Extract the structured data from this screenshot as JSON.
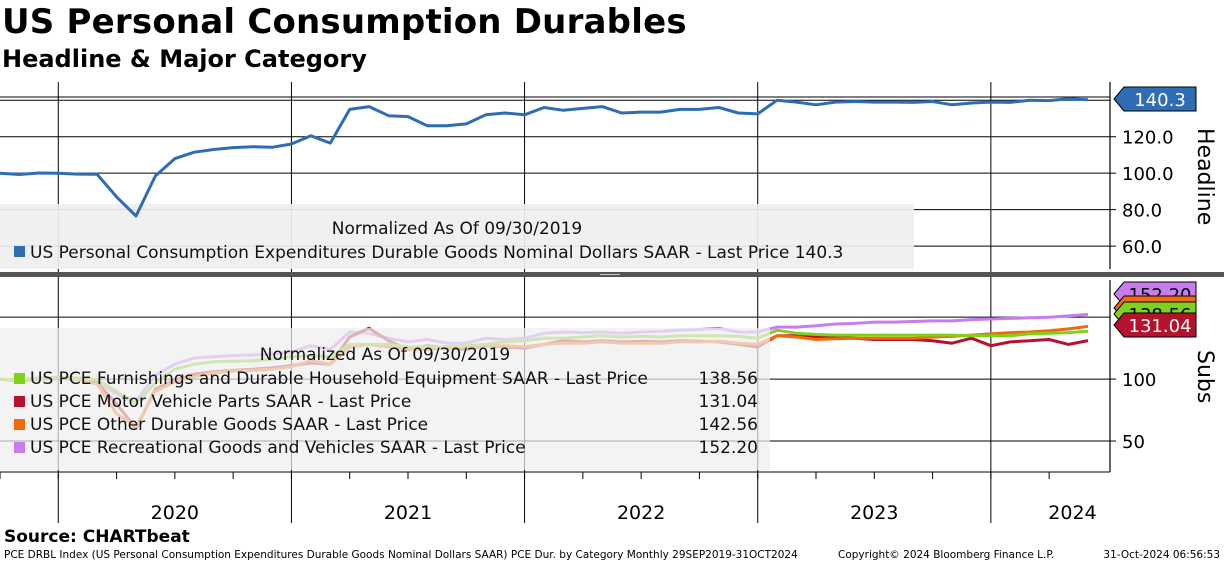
{
  "title": "US Personal Consumption Durables",
  "subtitle": "Headline & Major Category",
  "source": "Source: CHARTbeat",
  "footer": {
    "left": "PCE DRBL Index (US Personal Consumption Expenditures Durable Goods Nominal Dollars SAAR) PCE Dur. by Category  Monthly 29SEP2019-31OCT2024",
    "middle": "Copyright© 2024 Bloomberg Finance L.P.",
    "right": "31-Oct-2024 06:56:53"
  },
  "colors": {
    "headline": "#2E6DB4",
    "furnishings": "#7FD11B",
    "motor": "#B5122E",
    "other": "#F26A0D",
    "recreational": "#C77DF0",
    "furnishings_light": "#B5E68A",
    "motor_light": "#D8919A",
    "other_light": "#F5A980",
    "recreational_light": "#E3C4F7"
  },
  "chart_data": [
    {
      "type": "line",
      "panel": "top",
      "ylabel": "Headline",
      "ylim": [
        48,
        150
      ],
      "yticks": [
        "60.0",
        "80.0",
        "100.0",
        "120.0"
      ],
      "legend_header": "Normalized As Of 09/30/2019",
      "last_value_label": "140.3",
      "series": [
        {
          "name": "US Personal Consumption Expenditures Durable Goods Nominal Dollars SAAR - Last Price 140.3",
          "color_key": "headline",
          "values": [
            100.0,
            99.3,
            100.1,
            100.0,
            99.5,
            99.4,
            87.0,
            76.5,
            98.5,
            108.0,
            111.5,
            113.0,
            114.0,
            114.5,
            114.2,
            116.0,
            120.5,
            116.5,
            135.0,
            136.5,
            131.5,
            131.0,
            126.0,
            126.0,
            127.0,
            132.0,
            133.0,
            132.0,
            136.0,
            134.5,
            135.5,
            136.5,
            133.0,
            133.5,
            133.5,
            135.0,
            135.0,
            136.0,
            133.0,
            132.5,
            140.0,
            139.0,
            137.5,
            139.0,
            139.3,
            139.0,
            139.0,
            138.8,
            139.3,
            137.5,
            138.5,
            139.0,
            138.8,
            140.0,
            139.8,
            140.8,
            140.3
          ]
        }
      ]
    },
    {
      "type": "line",
      "panel": "bottom",
      "ylabel": "Subs",
      "ylim": [
        25,
        180
      ],
      "yticks": [
        "50",
        "100"
      ],
      "legend_header": "Normalized As Of 09/30/2019",
      "last_value_labels": [
        "152.20",
        "142.56",
        "138.56",
        "131.04"
      ],
      "series": [
        {
          "name": "US PCE Furnishings and Durable Household Equipment SAAR - Last Price 138.56",
          "legend_label": "US PCE Furnishings and Durable Household Equipment SAAR - Last Price",
          "last_price": "138.56",
          "color_key": "furnishings",
          "values": [
            100.0,
            99.0,
            100.5,
            101.0,
            101.0,
            99.5,
            90.0,
            80.0,
            97.0,
            108.0,
            112.0,
            114.0,
            114.5,
            114.8,
            116.0,
            118.0,
            119.0,
            118.0,
            128.0,
            128.0,
            128.0,
            126.0,
            126.0,
            126.0,
            127.0,
            128.0,
            130.0,
            131.0,
            133.0,
            133.0,
            134.0,
            135.0,
            134.0,
            134.5,
            134.0,
            135.0,
            135.0,
            135.0,
            134.5,
            133.0,
            139.5,
            137.0,
            136.0,
            135.5,
            135.5,
            135.5,
            135.5,
            135.5,
            135.5,
            135.5,
            135.0,
            135.0,
            135.0,
            136.5,
            137.0,
            137.5,
            138.56
          ]
        },
        {
          "name": "US PCE Motor Vehicle Parts SAAR - Last Price 131.04",
          "legend_label": "US PCE Motor Vehicle Parts SAAR - Last Price",
          "last_price": "131.04",
          "color_key": "motor",
          "values": [
            100.0,
            98.5,
            100.0,
            100.5,
            100.0,
            97.0,
            80.0,
            60.0,
            92.0,
            99.0,
            104.0,
            106.0,
            107.0,
            108.0,
            109.0,
            111.0,
            113.0,
            112.0,
            134.0,
            141.0,
            131.0,
            124.0,
            127.0,
            125.0,
            124.0,
            127.0,
            126.0,
            125.0,
            128.0,
            131.0,
            130.0,
            131.0,
            130.0,
            130.5,
            130.0,
            131.0,
            130.5,
            130.0,
            128.0,
            126.0,
            135.0,
            135.0,
            134.0,
            134.0,
            133.0,
            132.0,
            132.0,
            132.0,
            131.0,
            129.0,
            133.0,
            127.0,
            130.0,
            131.0,
            132.0,
            128.0,
            131.04
          ]
        },
        {
          "name": "US PCE Other Durable Goods SAAR - Last Price 142.56",
          "legend_label": "US PCE Other Durable Goods SAAR - Last Price",
          "last_price": "142.56",
          "color_key": "other",
          "values": [
            100.0,
            99.0,
            100.0,
            101.0,
            100.0,
            96.0,
            72.0,
            62.0,
            90.0,
            98.0,
            102.0,
            105.0,
            106.5,
            107.0,
            108.0,
            110.0,
            115.0,
            112.0,
            126.0,
            128.0,
            126.0,
            124.0,
            124.0,
            125.0,
            126.0,
            127.0,
            127.0,
            126.0,
            128.0,
            129.0,
            129.0,
            130.0,
            129.0,
            129.0,
            129.0,
            130.0,
            130.0,
            130.5,
            129.0,
            128.0,
            135.0,
            134.0,
            132.0,
            132.5,
            133.0,
            133.0,
            133.0,
            133.0,
            134.0,
            134.5,
            135.5,
            136.5,
            137.5,
            138.0,
            139.0,
            140.5,
            142.56
          ]
        },
        {
          "name": "US PCE Recreational Goods and Vehicles SAAR - Last Price 152.20",
          "legend_label": "US PCE Recreational Goods and Vehicles SAAR - Last Price",
          "last_price": "152.20",
          "color_key": "recreational",
          "values": [
            100.0,
            99.5,
            101.0,
            101.5,
            101.0,
            97.5,
            88.0,
            82.0,
            103.0,
            112.0,
            117.0,
            118.0,
            119.0,
            119.5,
            120.0,
            122.0,
            127.0,
            124.0,
            138.0,
            137.0,
            133.0,
            130.0,
            132.0,
            129.0,
            129.0,
            133.0,
            132.0,
            133.0,
            137.0,
            138.0,
            137.5,
            138.0,
            137.0,
            138.0,
            138.5,
            139.5,
            140.0,
            141.0,
            138.0,
            138.0,
            142.0,
            142.0,
            143.0,
            144.5,
            145.0,
            146.0,
            146.0,
            146.5,
            147.0,
            147.0,
            148.0,
            148.5,
            149.0,
            149.5,
            150.0,
            151.0,
            152.2
          ]
        }
      ]
    }
  ],
  "x_axis": {
    "year_labels": [
      "2020",
      "2021",
      "2022",
      "2023",
      "2024"
    ]
  }
}
